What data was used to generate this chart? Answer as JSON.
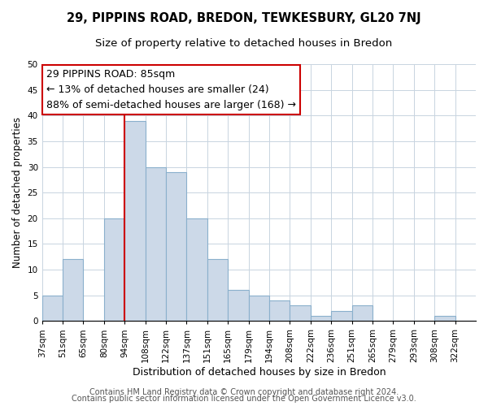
{
  "title": "29, PIPPINS ROAD, BREDON, TEWKESBURY, GL20 7NJ",
  "subtitle": "Size of property relative to detached houses in Bredon",
  "xlabel": "Distribution of detached houses by size in Bredon",
  "ylabel": "Number of detached properties",
  "bar_color": "#ccd9e8",
  "bar_edge_color": "#8ab0cc",
  "bin_labels": [
    "37sqm",
    "51sqm",
    "65sqm",
    "80sqm",
    "94sqm",
    "108sqm",
    "122sqm",
    "137sqm",
    "151sqm",
    "165sqm",
    "179sqm",
    "194sqm",
    "208sqm",
    "222sqm",
    "236sqm",
    "251sqm",
    "265sqm",
    "279sqm",
    "293sqm",
    "308sqm",
    "322sqm"
  ],
  "bar_heights": [
    5,
    12,
    0,
    20,
    39,
    30,
    29,
    20,
    12,
    6,
    5,
    4,
    3,
    1,
    2,
    3,
    0,
    0,
    0,
    1,
    0
  ],
  "vline_x_index": 4,
  "vline_color": "#cc0000",
  "ylim": [
    0,
    50
  ],
  "yticks": [
    0,
    5,
    10,
    15,
    20,
    25,
    30,
    35,
    40,
    45,
    50
  ],
  "annotation_title": "29 PIPPINS ROAD: 85sqm",
  "annotation_line2": "← 13% of detached houses are smaller (24)",
  "annotation_line3": "88% of semi-detached houses are larger (168) →",
  "footer_line1": "Contains HM Land Registry data © Crown copyright and database right 2024.",
  "footer_line2": "Contains public sector information licensed under the Open Government Licence v3.0.",
  "title_fontsize": 10.5,
  "subtitle_fontsize": 9.5,
  "xlabel_fontsize": 9,
  "ylabel_fontsize": 8.5,
  "annotation_fontsize": 9,
  "tick_fontsize": 7.5,
  "footer_fontsize": 7,
  "background_color": "#ffffff",
  "grid_color": "#c8d4e0"
}
